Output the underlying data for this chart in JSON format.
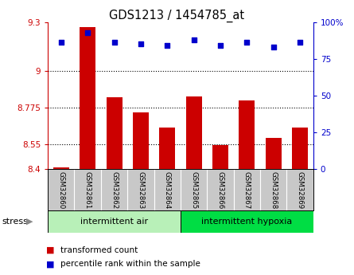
{
  "title": "GDS1213 / 1454785_at",
  "samples": [
    "GSM32860",
    "GSM32861",
    "GSM32862",
    "GSM32863",
    "GSM32864",
    "GSM32865",
    "GSM32866",
    "GSM32867",
    "GSM32868",
    "GSM32869"
  ],
  "bar_values": [
    8.41,
    9.27,
    8.84,
    8.745,
    8.655,
    8.845,
    8.545,
    8.82,
    8.59,
    8.655
  ],
  "percentile_values": [
    86,
    93,
    86,
    85,
    84,
    88,
    84,
    86,
    83,
    86
  ],
  "ylim_left": [
    8.4,
    9.3
  ],
  "ylim_right": [
    0,
    100
  ],
  "yticks_left": [
    8.4,
    8.55,
    8.775,
    9.0,
    9.3
  ],
  "ytick_labels_left": [
    "8.4",
    "8.55",
    "8.775",
    "9",
    "9.3"
  ],
  "yticks_right": [
    0,
    25,
    50,
    75,
    100
  ],
  "ytick_labels_right": [
    "0",
    "25",
    "50",
    "75",
    "100%"
  ],
  "grid_yticks": [
    9.0,
    8.775,
    8.55
  ],
  "bar_color": "#cc0000",
  "dot_color": "#0000cc",
  "bar_bottom": 8.4,
  "group1_label": "intermittent air",
  "group2_label": "intermittent hypoxia",
  "stress_label": "stress",
  "group_bg_color1": "#b8f0b8",
  "group_bg_color2": "#00dd44",
  "tick_label_bg": "#c8c8c8",
  "legend_bar_label": "transformed count",
  "legend_dot_label": "percentile rank within the sample",
  "fig_bg_color": "#ffffff",
  "plot_bg_color": "#ffffff",
  "arrow_color": "#888888"
}
